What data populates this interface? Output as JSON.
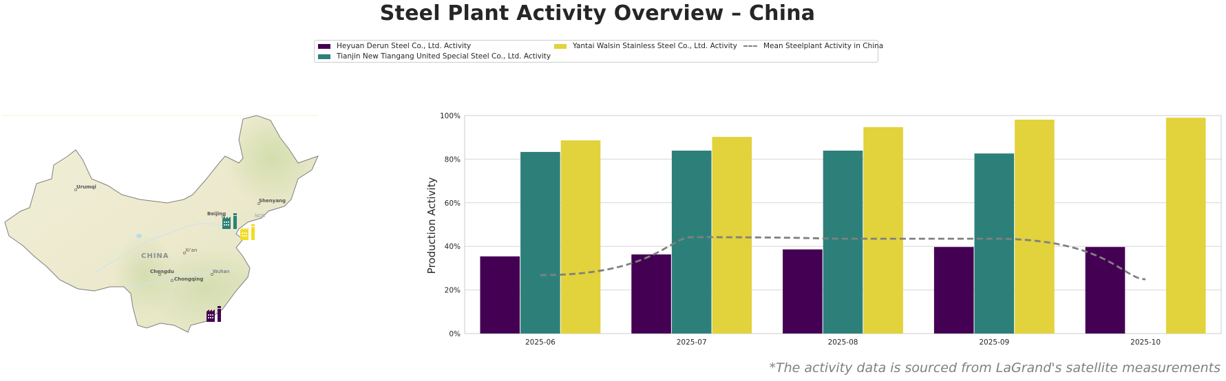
{
  "title": "Steel Plant Activity Overview – China",
  "legend": [
    {
      "label": "Heyuan Derun Steel Co., Ltd. Activity",
      "color": "#440154",
      "kind": "bar"
    },
    {
      "label": "Tianjin New Tiangang United Special Steel Co., Ltd. Activity",
      "color": "#2d8079",
      "kind": "bar"
    },
    {
      "label": "Yantai Walsin Stainless Steel Co., Ltd. Activity",
      "color": "#e2d23c",
      "kind": "bar"
    },
    {
      "label": "Mean Steelplant Activity in China",
      "color": "#808080",
      "kind": "dashed-line"
    }
  ],
  "map": {
    "country_label": "CHINA",
    "cities": [
      "Urumqi",
      "Beijing",
      "Shenyang",
      "Xi'an",
      "Chengdu",
      "Chongqing",
      "Wuhan"
    ],
    "partial_label": "NOR",
    "plants": [
      {
        "name": "Heyuan Derun Steel Co., Ltd.",
        "icon": "factory-icon",
        "color": "#440154"
      },
      {
        "name": "Tianjin New Tiangang United Special Steel Co., Ltd.",
        "icon": "factory-icon",
        "color": "#2d8079"
      },
      {
        "name": "Yantai Walsin Stainless Steel Co., Ltd.",
        "icon": "factory-icon",
        "color": "#f2dc26"
      }
    ]
  },
  "chart_data": {
    "type": "bar",
    "title": "Steel Plant Activity Overview – China",
    "xlabel": "",
    "ylabel": "Production Activity",
    "ylim": [
      0,
      100
    ],
    "yticks": [
      "0%",
      "20%",
      "40%",
      "60%",
      "80%",
      "100%"
    ],
    "grid": true,
    "legend_position": "top-center",
    "categories": [
      "2025-06",
      "2025-07",
      "2025-08",
      "2025-09",
      "2025-10"
    ],
    "series": [
      {
        "name": "Heyuan Derun Steel Co., Ltd. Activity",
        "color": "#440154",
        "values": [
          35.4,
          36.3,
          38.6,
          39.7,
          39.7
        ]
      },
      {
        "name": "Tianjin New Tiangang United Special Steel Co., Ltd. Activity",
        "color": "#2d8079",
        "values": [
          83.3,
          83.9,
          83.9,
          82.6,
          null
        ]
      },
      {
        "name": "Yantai Walsin Stainless Steel Co., Ltd. Activity",
        "color": "#e2d23c",
        "values": [
          88.6,
          90.2,
          94.7,
          98.1,
          99.0
        ]
      }
    ],
    "line_series": [
      {
        "name": "Mean Steelplant Activity in China",
        "color": "#808080",
        "style": "dashed",
        "values": [
          26.8,
          44.2,
          43.5,
          43.5,
          24.9
        ]
      }
    ]
  },
  "footnote": "*The activity data is sourced from LaGrand's satellite measurements"
}
